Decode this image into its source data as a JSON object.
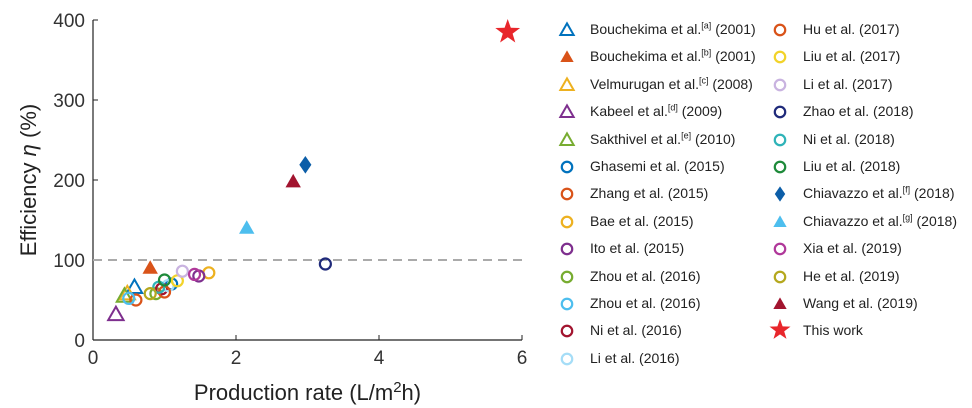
{
  "chart_data": {
    "type": "scatter",
    "xlabel": "Production rate (L/m2h)",
    "ylabel": "Efficiency η (%)",
    "xlim": [
      0,
      6
    ],
    "ylim": [
      0,
      400
    ],
    "xticks": [
      "0",
      "2",
      "4",
      "6"
    ],
    "yticks": [
      "0",
      "100",
      "200",
      "300",
      "400"
    ],
    "reference_line": {
      "y": 100,
      "style": "dashed",
      "color": "#aaaaaa"
    },
    "legend_placement": "right",
    "series": [
      {
        "name": "Bouchekima et al.[a] (2001)",
        "marker": "triangle-open",
        "color": "#0072BD",
        "points": [
          [
            0.58,
            66
          ]
        ]
      },
      {
        "name": "Bouchekima et al.[b] (2001)",
        "marker": "triangle-filled",
        "color": "#D95319",
        "points": [
          [
            0.8,
            90
          ]
        ]
      },
      {
        "name": "Velmurugan et al.[c] (2008)",
        "marker": "triangle-open",
        "color": "#EDB120",
        "points": [
          [
            0.48,
            58
          ]
        ]
      },
      {
        "name": "Kabeel et al.[d] (2009)",
        "marker": "triangle-open",
        "color": "#7E2F8E",
        "points": [
          [
            0.32,
            32
          ]
        ]
      },
      {
        "name": "Sakthivel et al.[e] (2010)",
        "marker": "triangle-open",
        "color": "#77AC30",
        "points": [
          [
            0.44,
            55
          ]
        ]
      },
      {
        "name": "Ghasemi et al. (2015)",
        "marker": "circle-open",
        "color": "#0072BD",
        "points": [
          [
            1.1,
            70
          ]
        ]
      },
      {
        "name": "Zhang et al. (2015)",
        "marker": "circle-open",
        "color": "#D95319",
        "points": [
          [
            0.6,
            50
          ]
        ]
      },
      {
        "name": "Bae et al. (2015)",
        "marker": "circle-open",
        "color": "#EDB120",
        "points": [
          [
            1.62,
            84
          ]
        ]
      },
      {
        "name": "Ito et al. (2015)",
        "marker": "circle-open",
        "color": "#7E2F8E",
        "points": [
          [
            1.48,
            80
          ]
        ]
      },
      {
        "name": "Zhou et al. (2016)",
        "marker": "circle-open",
        "color": "#77AC30",
        "points": [
          [
            0.88,
            58
          ]
        ]
      },
      {
        "name": "Zhou et al. (2016)",
        "marker": "circle-open",
        "color": "#4DBEEE",
        "points": [
          [
            0.5,
            52
          ]
        ]
      },
      {
        "name": "Ni et al. (2016)",
        "marker": "circle-open",
        "color": "#A2142F",
        "points": [
          [
            0.96,
            64
          ]
        ]
      },
      {
        "name": "Li et al. (2016)",
        "marker": "circle-open",
        "color": "#A5DDF7",
        "points": [
          [
            1.05,
            68
          ]
        ]
      },
      {
        "name": "Hu et al. (2017)",
        "marker": "circle-open",
        "color": "#D95319",
        "points": [
          [
            1.0,
            60
          ]
        ]
      },
      {
        "name": "Liu et al. (2017)",
        "marker": "circle-open",
        "color": "#F2D32A",
        "points": [
          [
            1.18,
            74
          ]
        ]
      },
      {
        "name": "Li et al. (2017)",
        "marker": "circle-open",
        "color": "#C9B3E0",
        "points": [
          [
            1.25,
            86
          ]
        ]
      },
      {
        "name": "Zhao et al. (2018)",
        "marker": "circle-open",
        "color": "#1F2A7A",
        "points": [
          [
            3.25,
            95
          ]
        ]
      },
      {
        "name": "Ni et al. (2018)",
        "marker": "circle-open",
        "color": "#2FB3B8",
        "points": [
          [
            0.92,
            66
          ]
        ]
      },
      {
        "name": "Liu et al. (2018)",
        "marker": "circle-open",
        "color": "#1E8A3A",
        "points": [
          [
            1.0,
            75
          ]
        ]
      },
      {
        "name": "Chiavazzo et al.[f] (2018)",
        "marker": "diamond-filled",
        "color": "#0C5EA8",
        "points": [
          [
            2.97,
            219
          ]
        ]
      },
      {
        "name": "Chiavazzo et al.[g] (2018)",
        "marker": "triangle-filled",
        "color": "#4DBEEE",
        "points": [
          [
            2.15,
            140
          ]
        ]
      },
      {
        "name": "Xia et al. (2019)",
        "marker": "circle-open",
        "color": "#B0389A",
        "points": [
          [
            1.42,
            82
          ]
        ]
      },
      {
        "name": "He et al. (2019)",
        "marker": "circle-open",
        "color": "#B5A81E",
        "points": [
          [
            0.8,
            58
          ]
        ]
      },
      {
        "name": "Wang et al. (2019)",
        "marker": "triangle-filled",
        "color": "#A2142F",
        "points": [
          [
            2.8,
            198
          ]
        ]
      },
      {
        "name": "This work",
        "marker": "star-filled",
        "color": "#E8262B",
        "points": [
          [
            5.8,
            385
          ]
        ]
      }
    ]
  }
}
